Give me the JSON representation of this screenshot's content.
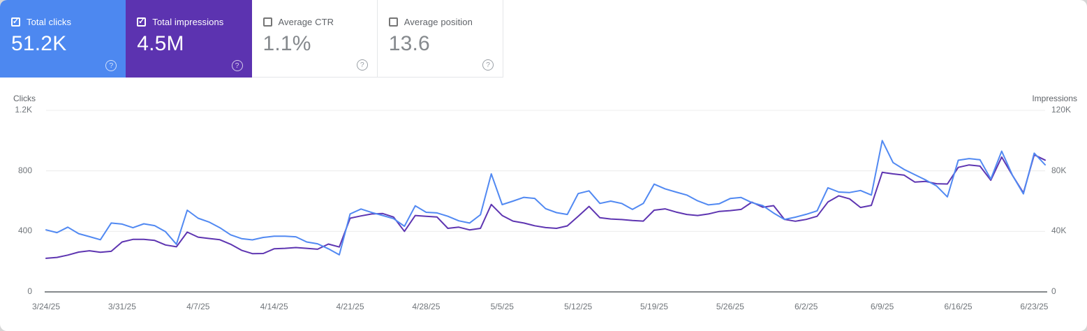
{
  "page_bg": "#d6d6d6",
  "panel_bg": "#ffffff",
  "icons": {
    "help": "?",
    "check": "✓"
  },
  "cards": [
    {
      "label": "Total clicks",
      "value": "51.2K",
      "checked": true,
      "bg": "#4d88f0",
      "label_color": "#ffffff",
      "value_color": "#ffffff",
      "checkbox_color": "#ffffff",
      "help_color": "rgba(255,255,255,0.75)"
    },
    {
      "label": "Total impressions",
      "value": "4.5M",
      "checked": true,
      "bg": "#5c33b0",
      "label_color": "#ffffff",
      "value_color": "#ffffff",
      "checkbox_color": "#ffffff",
      "help_color": "rgba(255,255,255,0.75)"
    },
    {
      "label": "Average CTR",
      "value": "1.1%",
      "checked": false,
      "bg": "#ffffff",
      "label_color": "#5f6368",
      "value_color": "#85898d",
      "checkbox_color": "#757575",
      "help_color": "#9aa0a6"
    },
    {
      "label": "Average position",
      "value": "13.6",
      "checked": false,
      "bg": "#ffffff",
      "label_color": "#5f6368",
      "value_color": "#85898d",
      "checkbox_color": "#757575",
      "help_color": "#9aa0a6"
    }
  ],
  "chart_data": {
    "type": "line",
    "grid": "horizontal",
    "legend": "none",
    "colors": {
      "gridline": "#ececec",
      "baseline": "#85898c"
    },
    "left_axis": {
      "title": "Clicks",
      "max": 1200,
      "ticks": [
        {
          "label": "1.2K",
          "value": 1200
        },
        {
          "label": "800",
          "value": 800
        },
        {
          "label": "400",
          "value": 400
        },
        {
          "label": "0",
          "value": 0
        }
      ]
    },
    "right_axis": {
      "title": "Impressions",
      "max": 120000,
      "ticks": [
        {
          "label": "120K",
          "value": 120000
        },
        {
          "label": "80K",
          "value": 80000
        },
        {
          "label": "40K",
          "value": 40000
        },
        {
          "label": "0",
          "value": 0
        }
      ]
    },
    "x_ticks": [
      {
        "label": "3/24/25",
        "day": 0
      },
      {
        "label": "3/31/25",
        "day": 7
      },
      {
        "label": "4/7/25",
        "day": 14
      },
      {
        "label": "4/14/25",
        "day": 21
      },
      {
        "label": "4/21/25",
        "day": 28
      },
      {
        "label": "4/28/25",
        "day": 35
      },
      {
        "label": "5/5/25",
        "day": 42
      },
      {
        "label": "5/12/25",
        "day": 49
      },
      {
        "label": "5/19/25",
        "day": 56
      },
      {
        "label": "5/26/25",
        "day": 63
      },
      {
        "label": "6/2/25",
        "day": 70
      },
      {
        "label": "6/9/25",
        "day": 77
      },
      {
        "label": "6/16/25",
        "day": 84
      },
      {
        "label": "6/23/25",
        "day": 91
      }
    ],
    "series": [
      {
        "name": "Clicks",
        "key": "clicks",
        "axis": "left",
        "color": "#5189f2",
        "values": [
          410,
          392,
          428,
          385,
          365,
          345,
          455,
          448,
          424,
          450,
          438,
          398,
          315,
          540,
          487,
          462,
          424,
          377,
          352,
          344,
          360,
          368,
          368,
          364,
          330,
          318,
          285,
          245,
          515,
          548,
          525,
          505,
          484,
          434,
          569,
          526,
          522,
          500,
          470,
          455,
          510,
          780,
          577,
          600,
          625,
          618,
          550,
          524,
          512,
          650,
          668,
          585,
          600,
          585,
          545,
          585,
          712,
          681,
          660,
          640,
          602,
          575,
          583,
          617,
          624,
          590,
          570,
          521,
          479,
          494,
          513,
          536,
          688,
          660,
          657,
          670,
          640,
          1000,
          855,
          810,
          775,
          740,
          700,
          628,
          870,
          881,
          873,
          746,
          930,
          770,
          648,
          917,
          840
        ]
      },
      {
        "name": "Impressions",
        "key": "impressions",
        "axis": "right",
        "color": "#5e35b1",
        "values": [
          22200,
          22800,
          24300,
          26300,
          27200,
          26200,
          26800,
          33000,
          34700,
          34700,
          34000,
          31000,
          29800,
          39500,
          36200,
          35300,
          34500,
          31500,
          27500,
          25300,
          25400,
          28500,
          28800,
          29300,
          28800,
          28200,
          31600,
          29700,
          48700,
          50200,
          51500,
          51800,
          49500,
          40000,
          50500,
          50000,
          49500,
          42000,
          42800,
          41000,
          42000,
          57800,
          50500,
          46800,
          45500,
          43700,
          42500,
          42000,
          43600,
          50000,
          56500,
          49000,
          48200,
          47800,
          47200,
          46800,
          54000,
          54900,
          52800,
          51200,
          50500,
          51500,
          53200,
          53700,
          54500,
          59300,
          56000,
          57000,
          47900,
          46700,
          47900,
          50000,
          59400,
          63500,
          61500,
          55800,
          57200,
          79000,
          78000,
          77200,
          72600,
          73000,
          71500,
          71300,
          82300,
          83900,
          83100,
          73800,
          89100,
          77000,
          65500,
          90600,
          87100
        ]
      }
    ]
  }
}
